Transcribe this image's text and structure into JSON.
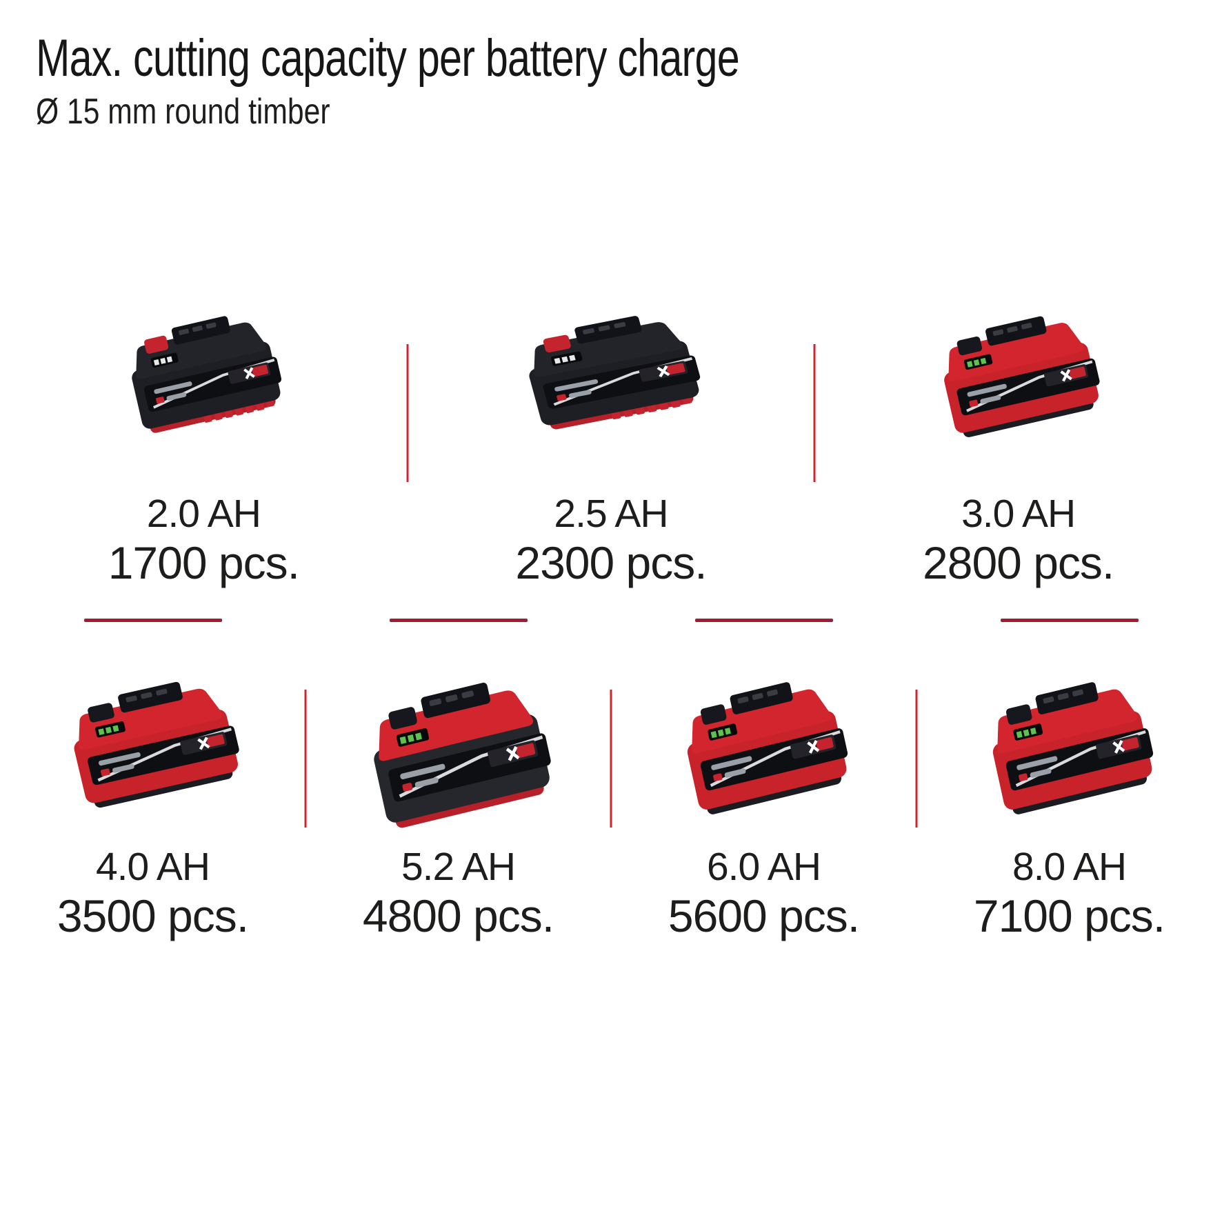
{
  "header": {
    "title": "Max. cutting capacity per battery charge",
    "subtitle": "Ø 15 mm round timber"
  },
  "colors": {
    "brand_red": "#d2232f",
    "divider_vertical": "#d2232f",
    "divider_horizontal": "#9e1d33",
    "text": "#1d1d1b",
    "background": "#ffffff"
  },
  "rows": [
    {
      "items": [
        {
          "capacity": "2.0 AH",
          "pieces": "1700 pcs.",
          "icon": "battery-2-0ah",
          "variant": "black-small"
        },
        {
          "capacity": "2.5 AH",
          "pieces": "2300 pcs.",
          "icon": "battery-2-5ah",
          "variant": "black-wide"
        },
        {
          "capacity": "3.0 AH",
          "pieces": "2800 pcs.",
          "icon": "battery-3-0ah",
          "variant": "red-small"
        }
      ]
    },
    {
      "items": [
        {
          "capacity": "4.0 AH",
          "pieces": "3500 pcs.",
          "icon": "battery-4-0ah",
          "variant": "red-medium"
        },
        {
          "capacity": "5.2 AH",
          "pieces": "4800 pcs.",
          "icon": "battery-5-2ah",
          "variant": "red-tall"
        },
        {
          "capacity": "6.0 AH",
          "pieces": "5600 pcs.",
          "icon": "battery-6-0ah",
          "variant": "red-large"
        },
        {
          "capacity": "8.0 AH",
          "pieces": "7100 pcs.",
          "icon": "battery-8-0ah",
          "variant": "red-large"
        }
      ]
    }
  ]
}
